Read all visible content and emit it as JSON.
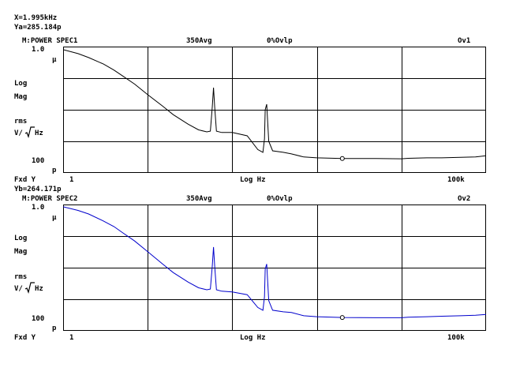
{
  "cursor": {
    "x_readout": "X=1.995kHz",
    "ya_readout": "Ya=285.184p",
    "yb_readout": "Yb=264.171p"
  },
  "colors": {
    "trace1": "#000000",
    "trace2": "#0000cc",
    "grid": "#000000"
  },
  "traces": [
    {
      "id": "trace1",
      "header": {
        "name": "M:POWER SPEC1",
        "avg": "350Avg",
        "overlap": "0%Ovlp",
        "overload": "Ov1"
      },
      "y_top": "1.0",
      "y_top_unit": "μ",
      "y_labels": {
        "log": "Log",
        "mag": "Mag",
        "rms": "rms",
        "unit_v": "V/",
        "unit_hz": "Hz"
      },
      "y_bottom": "100",
      "y_bottom_unit": "p",
      "footer": {
        "fxd": "Fxd Y",
        "x_start": "1",
        "x_label": "Log Hz",
        "x_end": "100k"
      },
      "marker_freq_hz": 1995,
      "marker_value_p": 285.184
    },
    {
      "id": "trace2",
      "header": {
        "name": "M:POWER SPEC2",
        "avg": "350Avg",
        "overlap": "0%Ovlp",
        "overload": "Ov2"
      },
      "y_top": "1.0",
      "y_top_unit": "μ",
      "y_labels": {
        "log": "Log",
        "mag": "Mag",
        "rms": "rms",
        "unit_v": "V/",
        "unit_hz": "Hz"
      },
      "y_bottom": "100",
      "y_bottom_unit": "p",
      "footer": {
        "fxd": "Fxd Y",
        "x_start": "1",
        "x_label": "Log Hz",
        "x_end": "100k"
      },
      "marker_freq_hz": 1995,
      "marker_value_p": 264.171
    }
  ],
  "chart_data": [
    {
      "type": "line",
      "x_scale": "log",
      "y_scale": "log",
      "xlim": [
        1,
        100000
      ],
      "ylim": [
        1e-10,
        1e-06
      ],
      "grid": true,
      "series": [
        {
          "x": [
            1,
            1.5,
            2,
            3,
            4,
            5,
            7,
            10,
            15,
            20,
            30,
            40,
            50,
            55,
            58,
            60,
            62,
            65,
            75,
            100,
            150,
            200,
            230,
            240,
            245,
            255,
            270,
            300,
            400,
            500,
            700,
            1000,
            2000,
            5000,
            10000,
            12000,
            20000,
            30000,
            50000,
            75000,
            100000
          ],
          "values": [
            8e-07,
            6e-07,
            4.5e-07,
            2.8e-07,
            1.8e-07,
            1.2e-07,
            6.5e-08,
            3e-08,
            1.3e-08,
            7e-09,
            3.5e-09,
            2.3e-09,
            2e-09,
            2.1e-09,
            1.2e-08,
            5e-08,
            1.2e-08,
            2.1e-09,
            1.9e-09,
            1.9e-09,
            1.5e-09,
            5.5e-10,
            4.5e-10,
            1.2e-09,
            1e-08,
            1.5e-08,
            1e-09,
            5e-10,
            4.5e-10,
            4e-10,
            3.2e-10,
            3e-10,
            2.85e-10,
            2.85e-10,
            2.8e-10,
            2.9e-10,
            3e-10,
            3e-10,
            3.1e-10,
            3.2e-10,
            3.5e-10
          ]
        }
      ]
    },
    {
      "type": "line",
      "x_scale": "log",
      "y_scale": "log",
      "xlim": [
        1,
        100000
      ],
      "ylim": [
        1e-10,
        1e-06
      ],
      "grid": true,
      "series": [
        {
          "x": [
            1,
            1.5,
            2,
            3,
            4,
            5,
            7,
            10,
            15,
            20,
            30,
            40,
            50,
            55,
            58,
            60,
            62,
            65,
            75,
            100,
            150,
            200,
            230,
            240,
            245,
            255,
            270,
            300,
            400,
            500,
            700,
            1000,
            2000,
            5000,
            10000,
            12000,
            20000,
            30000,
            50000,
            75000,
            100000
          ],
          "values": [
            8.5e-07,
            6.5e-07,
            5e-07,
            3e-07,
            2e-07,
            1.3e-07,
            7e-08,
            3.2e-08,
            1.3e-08,
            7e-09,
            3.5e-09,
            2.3e-09,
            2e-09,
            2.1e-09,
            1.1e-08,
            4.5e-08,
            1.1e-08,
            2e-09,
            1.8e-09,
            1.7e-09,
            1.4e-09,
            5.5e-10,
            4.5e-10,
            1.2e-09,
            9e-09,
            1.3e-08,
            9e-10,
            4.5e-10,
            4e-10,
            3.8e-10,
            3e-10,
            2.8e-10,
            2.64e-10,
            2.6e-10,
            2.6e-10,
            2.7e-10,
            2.8e-10,
            2.9e-10,
            3e-10,
            3.1e-10,
            3.3e-10
          ]
        }
      ]
    }
  ]
}
